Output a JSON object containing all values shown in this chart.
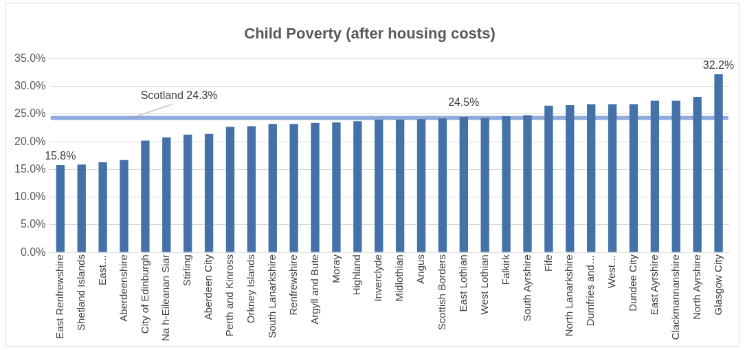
{
  "chart_data": {
    "type": "bar",
    "title": "Child Poverty (after housing costs)",
    "categories": [
      "East Renfrewshire",
      "Shetland Islands",
      "East…",
      "Aberdeenshire",
      "City of Edinburgh",
      "Na h-Eileanan Siar",
      "Stirling",
      "Aberdeen City",
      "Perth and Kinross",
      "Orkney Islands",
      "South Lanarkshire",
      "Renfrewshire",
      "Argyll and Bute",
      "Moray",
      "Highland",
      "Inverclyde",
      "Midlothian",
      "Angus",
      "Scottish Borders",
      "East Lothian",
      "West Lothian",
      "Falkirk",
      "South Ayrshire",
      "Fife",
      "North Lanarkshire",
      "Dumfries and…",
      "West…",
      "Dundee City",
      "East Ayrshire",
      "Clackmannanshire",
      "North Ayrshire",
      "Glasgow City"
    ],
    "values": [
      15.8,
      15.9,
      16.3,
      16.7,
      20.2,
      20.8,
      21.3,
      21.4,
      22.7,
      22.8,
      23.2,
      23.2,
      23.4,
      23.5,
      23.7,
      24.0,
      24.0,
      24.1,
      24.2,
      24.5,
      24.3,
      24.6,
      24.8,
      26.5,
      26.6,
      26.8,
      26.8,
      26.8,
      27.4,
      27.4,
      28.1,
      32.2
    ],
    "value_labels": [
      "15.8%",
      null,
      null,
      null,
      null,
      null,
      null,
      null,
      null,
      null,
      null,
      null,
      null,
      null,
      null,
      null,
      null,
      null,
      null,
      "24.5%",
      null,
      null,
      null,
      null,
      null,
      null,
      null,
      null,
      null,
      null,
      null,
      "32.2%"
    ],
    "color": "#4472a8",
    "ylim": [
      0,
      35
    ],
    "yticks": [
      {
        "value": 0,
        "label": "0.0%"
      },
      {
        "value": 5,
        "label": "5.0%"
      },
      {
        "value": 10,
        "label": "10.0%"
      },
      {
        "value": 15,
        "label": "15.0%"
      },
      {
        "value": 20,
        "label": "20.0%"
      },
      {
        "value": 25,
        "label": "25.0%"
      },
      {
        "value": 30,
        "label": "30.0%"
      },
      {
        "value": 35,
        "label": "35.0%"
      }
    ],
    "grid": "y",
    "ref_lines": [
      {
        "axis": "y",
        "value": 24.3,
        "label": "Scotland 24.3%",
        "color": "#8faadc"
      }
    ]
  }
}
